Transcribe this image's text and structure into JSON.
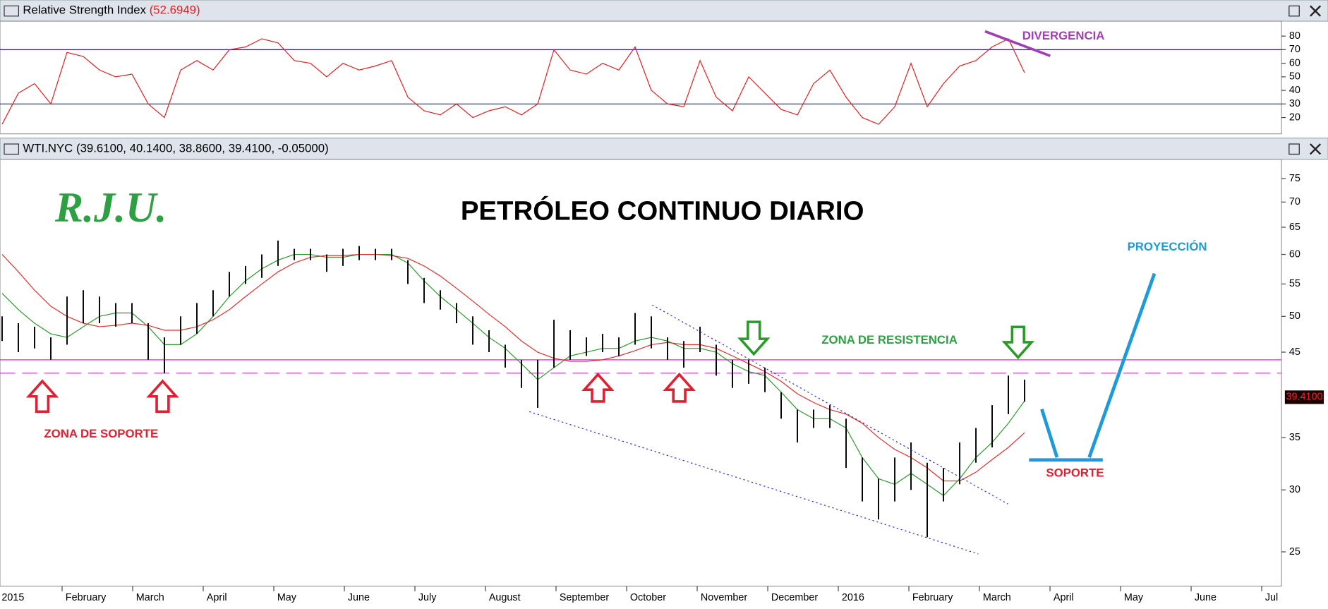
{
  "chart_data": [
    {
      "type": "line",
      "title": "Relative Strength Index",
      "subtitle": "(52.6949)",
      "color": "#e02020",
      "level_color": "#2020c0",
      "x": [
        0.15,
        0.38,
        0.61,
        0.84,
        1.07,
        1.3,
        1.53,
        1.76,
        1.99,
        2.22,
        2.45,
        2.68,
        2.91,
        3.14,
        3.37,
        3.6,
        3.83,
        4.06,
        4.29,
        4.52,
        4.75,
        4.98,
        5.21,
        5.44,
        5.67,
        5.9,
        6.13,
        6.36,
        6.59,
        6.82,
        7.05,
        7.28,
        7.51,
        7.74,
        7.97,
        8.2,
        8.43,
        8.66,
        8.89,
        9.12,
        9.35,
        9.58,
        9.81,
        10.04,
        10.27,
        10.5,
        10.73,
        10.96,
        11.19,
        11.42,
        11.65,
        11.88,
        12.11,
        12.34,
        12.57,
        12.8,
        13.03,
        13.26,
        13.49,
        13.72,
        13.95,
        14.18,
        14.41,
        14.64
      ],
      "values": [
        15,
        38,
        45,
        30,
        68,
        65,
        55,
        50,
        52,
        30,
        20,
        55,
        62,
        55,
        70,
        72,
        78,
        75,
        62,
        60,
        50,
        60,
        55,
        58,
        62,
        35,
        25,
        22,
        30,
        20,
        25,
        28,
        22,
        30,
        70,
        55,
        52,
        60,
        55,
        72,
        40,
        30,
        28,
        62,
        35,
        25,
        50,
        38,
        26,
        22,
        45,
        55,
        35,
        20,
        15,
        28,
        60,
        28,
        45,
        58,
        62,
        72,
        78,
        53
      ],
      "levels": [
        70,
        30
      ],
      "xlim": [
        0.12,
        18.28
      ],
      "ylim": [
        8,
        91
      ],
      "yticks": [
        20,
        30,
        40,
        50,
        60,
        70,
        80
      ]
    },
    {
      "type": "hlc",
      "title": "WTI.NYC (39.6100, 40.1400, 38.8600, 39.4100, -0.05000)",
      "x": [
        0.15,
        0.38,
        0.61,
        0.84,
        1.07,
        1.3,
        1.53,
        1.76,
        1.99,
        2.22,
        2.45,
        2.68,
        2.91,
        3.14,
        3.37,
        3.6,
        3.83,
        4.06,
        4.29,
        4.52,
        4.75,
        4.98,
        5.21,
        5.44,
        5.67,
        5.9,
        6.13,
        6.36,
        6.59,
        6.82,
        7.05,
        7.28,
        7.51,
        7.74,
        7.97,
        8.2,
        8.43,
        8.66,
        8.89,
        9.12,
        9.35,
        9.58,
        9.81,
        10.04,
        10.27,
        10.5,
        10.73,
        10.96,
        11.19,
        11.42,
        11.65,
        11.88,
        12.11,
        12.34,
        12.57,
        12.8,
        13.03,
        13.26,
        13.49,
        13.72,
        13.95,
        14.18,
        14.41,
        14.64
      ],
      "high": [
        50,
        49,
        48.5,
        47,
        53,
        54,
        53,
        52,
        52,
        49,
        47,
        50,
        52,
        54,
        57,
        58,
        60,
        62.5,
        61,
        61,
        60,
        61,
        61.5,
        61,
        61,
        59,
        56,
        54,
        52,
        50,
        48,
        46,
        44,
        44,
        49.5,
        48,
        47,
        47.5,
        47,
        50.5,
        50,
        47,
        46.5,
        48.5,
        46,
        44,
        44,
        43,
        40,
        38,
        38,
        38.5,
        37,
        33,
        31,
        33,
        34.5,
        32.5,
        32,
        34.5,
        36,
        38.5,
        42,
        41.5
      ],
      "low": [
        46.5,
        45,
        45.5,
        44,
        46,
        49,
        49,
        48.5,
        49,
        44,
        42.3,
        46,
        47.5,
        50,
        53,
        55,
        56,
        58,
        59,
        59,
        57,
        58,
        59,
        59,
        59,
        55,
        52,
        51,
        49,
        46,
        45,
        43,
        40.5,
        38.2,
        43,
        44,
        44.5,
        45,
        44.5,
        46,
        45.5,
        44,
        43,
        45,
        42,
        40.5,
        41,
        40,
        37,
        34.5,
        36,
        36,
        32,
        29,
        27.5,
        29,
        30,
        26.1,
        29,
        30.5,
        32.5,
        34,
        37.5,
        38.9
      ],
      "bar_color": "#000000",
      "moving_averages": [
        {
          "color": "#2a9a2a",
          "values": [
            53.5,
            51,
            49,
            47.5,
            47,
            48.5,
            50,
            50.5,
            50.5,
            48.5,
            46,
            46,
            47.5,
            50,
            53,
            55.5,
            57.5,
            59,
            60,
            60,
            59.5,
            59.5,
            60,
            60,
            60,
            58.5,
            55.5,
            53,
            51,
            49,
            47,
            45.5,
            43.5,
            41.5,
            43,
            44.5,
            45,
            45.5,
            45.5,
            46.5,
            47,
            46.5,
            45.5,
            45.5,
            45,
            43.5,
            42.5,
            42,
            40,
            38,
            37,
            37,
            36,
            33,
            31,
            30.5,
            31.5,
            30.5,
            29.5,
            31,
            33,
            34.5,
            36.5,
            39
          ]
        },
        {
          "color": "#e03030",
          "values": [
            60,
            57,
            54,
            51.5,
            50,
            49,
            48.5,
            48.7,
            49,
            48.7,
            48,
            48,
            48.5,
            49.5,
            51,
            53,
            55,
            57,
            58.5,
            59.5,
            59.8,
            59.8,
            60,
            60,
            59.8,
            59.3,
            58,
            56.3,
            54.3,
            52.3,
            50.3,
            48.5,
            46.5,
            45,
            44.2,
            43.8,
            43.8,
            44,
            44.5,
            45.2,
            46,
            46.3,
            46,
            46,
            45.5,
            44.5,
            43.5,
            42.5,
            41.3,
            39.8,
            38.8,
            38,
            37.5,
            36.5,
            35,
            33.8,
            33,
            32,
            30.8,
            30.8,
            31.6,
            32.8,
            34,
            35.5
          ]
        }
      ],
      "levels": [
        44.0,
        42.3
      ],
      "level_color": "#e020e0",
      "last_value": {
        "value": 39.41,
        "label": "39.4100"
      },
      "log_y": true,
      "xlim": [
        0.12,
        18.28
      ],
      "ylim": [
        22.6,
        79.4
      ],
      "yticks": [
        25,
        30,
        35,
        45,
        50,
        55,
        60,
        65,
        70,
        75
      ],
      "xticks": [
        {
          "value": 0,
          "label": "2015"
        },
        {
          "value": 1,
          "label": "February"
        },
        {
          "value": 2,
          "label": "March"
        },
        {
          "value": 3,
          "label": "April"
        },
        {
          "value": 4,
          "label": "May"
        },
        {
          "value": 5,
          "label": "June"
        },
        {
          "value": 6,
          "label": "July"
        },
        {
          "value": 7,
          "label": "August"
        },
        {
          "value": 8,
          "label": "September"
        },
        {
          "value": 9,
          "label": "October"
        },
        {
          "value": 10,
          "label": "November"
        },
        {
          "value": 11,
          "label": "December"
        },
        {
          "value": 12,
          "label": "2016"
        },
        {
          "value": 13,
          "label": "February"
        },
        {
          "value": 14,
          "label": "March"
        },
        {
          "value": 15,
          "label": "April"
        },
        {
          "value": 16,
          "label": "May"
        },
        {
          "value": 17,
          "label": "June"
        },
        {
          "value": 18,
          "label": "Jul"
        }
      ],
      "annotations": [
        "R.J.U.",
        "PETRÓLEO CONTINUO DIARIO",
        "ZONA DE RESISTENCIA",
        "ZONA DE SOPORTE",
        "SOPORTE",
        "PROYECCIÓN",
        "DIVERGENCIA"
      ]
    }
  ]
}
